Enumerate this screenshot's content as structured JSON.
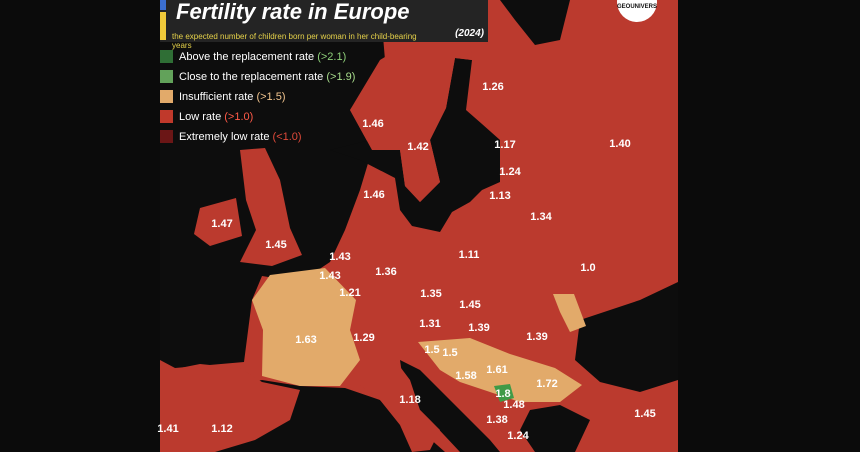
{
  "header": {
    "title": "Fertility rate in Europe",
    "subtitle": "the expected number of children born per woman in her child-bearing years",
    "year": "(2024)",
    "brand": "GEOUNIVERS"
  },
  "legend": [
    {
      "text": "Above the replacement rate ",
      "threshold": "(>2.1)",
      "color": "#2f6e35",
      "threshold_color": "#8fd07a"
    },
    {
      "text": "Close to the replacement rate ",
      "threshold": "(>1.9)",
      "color": "#62a25a",
      "threshold_color": "#a8dc8c"
    },
    {
      "text": "Insufficient rate ",
      "threshold": "(>1.5)",
      "color": "#e2aa6a",
      "threshold_color": "#f1c48e"
    },
    {
      "text": "Low rate ",
      "threshold": "(>1.0)",
      "color": "#c0392b",
      "threshold_color": "#ff5a48"
    },
    {
      "text": "Extremely low rate ",
      "threshold": "(<1.0)",
      "color": "#6b1616",
      "threshold_color": "#e04a3a"
    }
  ],
  "labels": [
    "1.26",
    "1.46",
    "1.42",
    "1.17",
    "1.40",
    "1.24",
    "1.46",
    "1.13",
    "1.34",
    "1.47",
    "1.45",
    "1.43",
    "1.11",
    "1.0",
    "1.36",
    "1.43",
    "1.21",
    "1.35",
    "1.45",
    "1.63",
    "1.31",
    "1.39",
    "1.39",
    "1.29",
    "1.5",
    "1.5",
    "1.58",
    "1.61",
    "1.72",
    "1.8",
    "1.48",
    "1.18",
    "1.38",
    "1.24",
    "1.41",
    "1.12",
    "1.45"
  ]
}
